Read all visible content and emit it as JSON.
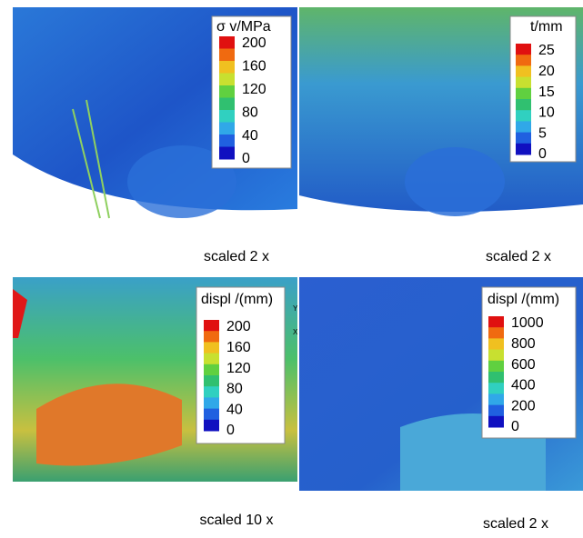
{
  "panels": [
    {
      "legend": {
        "title": "σ v/MPa",
        "ticks": [
          "200",
          "160",
          "120",
          "80",
          "40",
          "0"
        ]
      },
      "caption": "scaled 2 x"
    },
    {
      "legend": {
        "title": "t/mm",
        "ticks": [
          "25",
          "20",
          "15",
          "10",
          "5",
          "0"
        ]
      },
      "caption": "scaled 2 x"
    },
    {
      "legend": {
        "title": "displ /(mm)",
        "ticks": [
          "200",
          "160",
          "120",
          "80",
          "40",
          "0"
        ]
      },
      "caption": "scaled 10 x",
      "axes": [
        "Y",
        "X"
      ]
    },
    {
      "legend": {
        "title": "displ /(mm)",
        "ticks": [
          "1000",
          "800",
          "600",
          "400",
          "200",
          "0"
        ]
      },
      "caption": "scaled 2 x"
    }
  ]
}
